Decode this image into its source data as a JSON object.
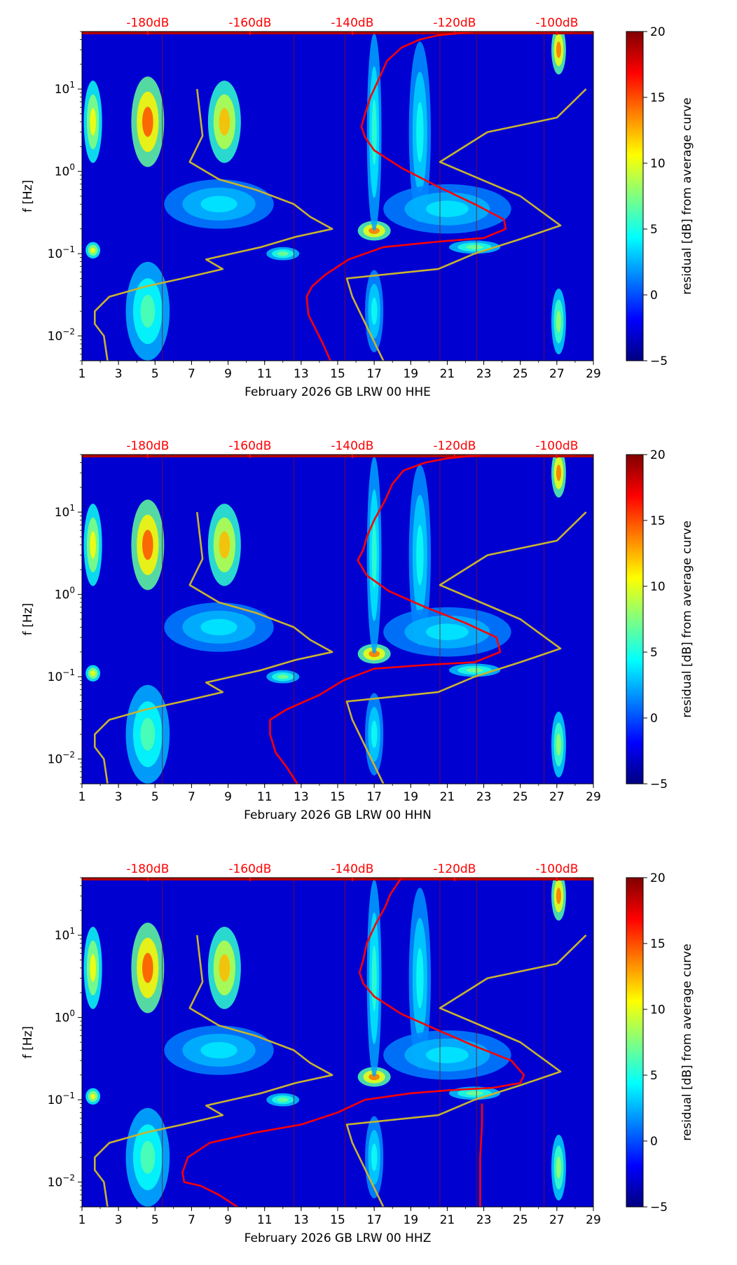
{
  "figure": {
    "panel_count": 3
  },
  "chart_data": [
    {
      "type": "heatmap",
      "channel": "HHE",
      "xlabel": "February 2026 GB LRW 00 HHE",
      "ylabel": "f [Hz]",
      "xlim": [
        1,
        29
      ],
      "xticks": [
        "1",
        "3",
        "5",
        "7",
        "9",
        "11",
        "13",
        "15",
        "17",
        "19",
        "21",
        "23",
        "25",
        "27",
        "29"
      ],
      "ylim": [
        0.005,
        50
      ],
      "yscale": "log",
      "yticks": [
        {
          "value": 0.01,
          "base": "10",
          "exp": "−2"
        },
        {
          "value": 0.1,
          "base": "10",
          "exp": "−1"
        },
        {
          "value": 1,
          "base": "10",
          "exp": "0"
        },
        {
          "value": 10,
          "base": "10",
          "exp": "1"
        }
      ],
      "top_axis_labels": [
        "-180dB",
        "-160dB",
        "-140dB",
        "-120dB",
        "-100dB"
      ],
      "top_axis_color": "#ff0000",
      "colorbar": {
        "label": "residual [dB] from average curve",
        "min": -5,
        "max": 20,
        "ticks": [
          "−5",
          "0",
          "5",
          "10",
          "15",
          "20"
        ],
        "colormap": "jet"
      },
      "curves": [
        {
          "color": "#ff0000",
          "points": [
            [
              14.6,
              0.005
            ],
            [
              14.2,
              0.008
            ],
            [
              13.8,
              0.012
            ],
            [
              13.4,
              0.018
            ],
            [
              13.3,
              0.03
            ],
            [
              13.6,
              0.04
            ],
            [
              14.3,
              0.055
            ],
            [
              15.6,
              0.085
            ],
            [
              17.5,
              0.12
            ],
            [
              20.5,
              0.14
            ],
            [
              23,
              0.155
            ],
            [
              24.2,
              0.2
            ],
            [
              24.1,
              0.26
            ],
            [
              22.5,
              0.4
            ],
            [
              20.5,
              0.65
            ],
            [
              18.5,
              1.1
            ],
            [
              17,
              1.8
            ],
            [
              16.5,
              2.6
            ],
            [
              16.3,
              3.5
            ],
            [
              16.5,
              5
            ],
            [
              16.8,
              8
            ],
            [
              17.3,
              14
            ],
            [
              17.7,
              22
            ],
            [
              18.5,
              32
            ],
            [
              19.5,
              40
            ],
            [
              20.5,
              45
            ],
            [
              22.5,
              50
            ],
            [
              28,
              50
            ]
          ]
        },
        {
          "color": "#c8b430",
          "points": [
            [
              2.4,
              0.005
            ],
            [
              2.2,
              0.01
            ],
            [
              1.7,
              0.014
            ],
            [
              1.7,
              0.02
            ],
            [
              2.5,
              0.03
            ],
            [
              4.5,
              0.04
            ],
            [
              6.5,
              0.05
            ],
            [
              8.7,
              0.065
            ],
            [
              7.8,
              0.085
            ],
            [
              9.2,
              0.1
            ],
            [
              10.8,
              0.12
            ],
            [
              12.7,
              0.16
            ],
            [
              14.7,
              0.2
            ],
            [
              13.5,
              0.28
            ],
            [
              12.6,
              0.4
            ],
            [
              10.5,
              0.6
            ],
            [
              8.5,
              0.8
            ],
            [
              6.9,
              1.3
            ],
            [
              7.6,
              2.7
            ],
            [
              7.3,
              10
            ],
            [
              17.5,
              0.005
            ],
            [
              15.8,
              0.03
            ],
            [
              15.5,
              0.05
            ],
            [
              20.5,
              0.065
            ],
            [
              22.5,
              0.1
            ],
            [
              25,
              0.15
            ],
            [
              27.2,
              0.22
            ],
            [
              25,
              0.5
            ],
            [
              20.6,
              1.3
            ],
            [
              23.2,
              3
            ],
            [
              27,
              4.5
            ],
            [
              28.6,
              10
            ]
          ]
        }
      ]
    },
    {
      "type": "heatmap",
      "channel": "HHN",
      "xlabel": "February 2026 GB LRW 00 HHN",
      "ylabel": "f [Hz]",
      "xlim": [
        1,
        29
      ],
      "xticks": [
        "1",
        "3",
        "5",
        "7",
        "9",
        "11",
        "13",
        "15",
        "17",
        "19",
        "21",
        "23",
        "25",
        "27",
        "29"
      ],
      "ylim": [
        0.005,
        50
      ],
      "yscale": "log",
      "yticks": [
        {
          "value": 0.01,
          "base": "10",
          "exp": "−2"
        },
        {
          "value": 0.1,
          "base": "10",
          "exp": "−1"
        },
        {
          "value": 1,
          "base": "10",
          "exp": "0"
        },
        {
          "value": 10,
          "base": "10",
          "exp": "1"
        }
      ],
      "top_axis_labels": [
        "-180dB",
        "-160dB",
        "-140dB",
        "-120dB",
        "-100dB"
      ],
      "top_axis_color": "#ff0000",
      "colorbar": {
        "label": "residual [dB] from average curve",
        "min": -5,
        "max": 20,
        "ticks": [
          "−5",
          "0",
          "5",
          "10",
          "15",
          "20"
        ],
        "colormap": "jet"
      },
      "curves": [
        {
          "color": "#ff0000",
          "points": [
            [
              12.8,
              0.005
            ],
            [
              12.2,
              0.008
            ],
            [
              11.6,
              0.012
            ],
            [
              11.3,
              0.02
            ],
            [
              11.3,
              0.03
            ],
            [
              12.2,
              0.04
            ],
            [
              14,
              0.06
            ],
            [
              15.3,
              0.09
            ],
            [
              17,
              0.125
            ],
            [
              20,
              0.14
            ],
            [
              22.5,
              0.15
            ],
            [
              23.9,
              0.2
            ],
            [
              23.7,
              0.3
            ],
            [
              22,
              0.45
            ],
            [
              19.8,
              0.7
            ],
            [
              17.8,
              1.1
            ],
            [
              16.6,
              1.7
            ],
            [
              16.1,
              2.6
            ],
            [
              16.4,
              3.5
            ],
            [
              16.6,
              5
            ],
            [
              17,
              8
            ],
            [
              17.6,
              14
            ],
            [
              18,
              22
            ],
            [
              18.6,
              32
            ],
            [
              19.8,
              40
            ],
            [
              21,
              45
            ],
            [
              23,
              50
            ],
            [
              28,
              50
            ]
          ]
        },
        {
          "color": "#c8b430",
          "points": [
            [
              2.4,
              0.005
            ],
            [
              2.2,
              0.01
            ],
            [
              1.7,
              0.014
            ],
            [
              1.7,
              0.02
            ],
            [
              2.5,
              0.03
            ],
            [
              4.5,
              0.04
            ],
            [
              6.5,
              0.05
            ],
            [
              8.7,
              0.065
            ],
            [
              7.8,
              0.085
            ],
            [
              9.2,
              0.1
            ],
            [
              10.8,
              0.12
            ],
            [
              12.7,
              0.16
            ],
            [
              14.7,
              0.2
            ],
            [
              13.5,
              0.28
            ],
            [
              12.6,
              0.4
            ],
            [
              10.5,
              0.6
            ],
            [
              8.5,
              0.8
            ],
            [
              6.9,
              1.3
            ],
            [
              7.6,
              2.7
            ],
            [
              7.3,
              10
            ],
            [
              17.5,
              0.005
            ],
            [
              15.8,
              0.03
            ],
            [
              15.5,
              0.05
            ],
            [
              20.5,
              0.065
            ],
            [
              22.5,
              0.1
            ],
            [
              25,
              0.15
            ],
            [
              27.2,
              0.22
            ],
            [
              25,
              0.5
            ],
            [
              20.6,
              1.3
            ],
            [
              23.2,
              3
            ],
            [
              27,
              4.5
            ],
            [
              28.6,
              10
            ]
          ]
        }
      ]
    },
    {
      "type": "heatmap",
      "channel": "HHZ",
      "xlabel": "February 2026 GB LRW 00 HHZ",
      "ylabel": "f [Hz]",
      "xlim": [
        1,
        29
      ],
      "xticks": [
        "1",
        "3",
        "5",
        "7",
        "9",
        "11",
        "13",
        "15",
        "17",
        "19",
        "21",
        "23",
        "25",
        "27",
        "29"
      ],
      "ylim": [
        0.005,
        50
      ],
      "yscale": "log",
      "yticks": [
        {
          "value": 0.01,
          "base": "10",
          "exp": "−2"
        },
        {
          "value": 0.1,
          "base": "10",
          "exp": "−1"
        },
        {
          "value": 1,
          "base": "10",
          "exp": "0"
        },
        {
          "value": 10,
          "base": "10",
          "exp": "1"
        }
      ],
      "top_axis_labels": [
        "-180dB",
        "-160dB",
        "-140dB",
        "-120dB",
        "-100dB"
      ],
      "top_axis_color": "#ff0000",
      "colorbar": {
        "label": "residual [dB] from average curve",
        "min": -5,
        "max": 20,
        "ticks": [
          "−5",
          "0",
          "5",
          "10",
          "15",
          "20"
        ],
        "colormap": "jet"
      },
      "curves": [
        {
          "color": "#ff0000",
          "points": [
            [
              9.5,
              0.005
            ],
            [
              8.5,
              0.007
            ],
            [
              7.5,
              0.009
            ],
            [
              6.6,
              0.01
            ],
            [
              6.5,
              0.013
            ],
            [
              6.8,
              0.02
            ],
            [
              8,
              0.03
            ],
            [
              10.5,
              0.04
            ],
            [
              13,
              0.05
            ],
            [
              15,
              0.07
            ],
            [
              16.5,
              0.1
            ],
            [
              19,
              0.12
            ],
            [
              21,
              0.13
            ],
            [
              23.5,
              0.14
            ],
            [
              25,
              0.16
            ],
            [
              25.2,
              0.2
            ],
            [
              24.5,
              0.3
            ],
            [
              22.5,
              0.45
            ],
            [
              20.5,
              0.7
            ],
            [
              18.5,
              1.1
            ],
            [
              17,
              1.8
            ],
            [
              16.4,
              2.6
            ],
            [
              16.2,
              3.5
            ],
            [
              16.4,
              5
            ],
            [
              16.6,
              8
            ],
            [
              17.1,
              14
            ],
            [
              17.6,
              22
            ],
            [
              17.9,
              32
            ],
            [
              18.2,
              40
            ],
            [
              18.5,
              50
            ],
            [
              28,
              50
            ]
          ]
        },
        {
          "color": "#ff0000",
          "points": [
            [
              22.8,
              0.005
            ],
            [
              22.8,
              0.02
            ],
            [
              22.9,
              0.05
            ],
            [
              22.9,
              0.09
            ]
          ]
        },
        {
          "color": "#c8b430",
          "points": [
            [
              2.4,
              0.005
            ],
            [
              2.2,
              0.01
            ],
            [
              1.7,
              0.014
            ],
            [
              1.7,
              0.02
            ],
            [
              2.5,
              0.03
            ],
            [
              4.5,
              0.04
            ],
            [
              6.5,
              0.05
            ],
            [
              8.7,
              0.065
            ],
            [
              7.8,
              0.085
            ],
            [
              9.2,
              0.1
            ],
            [
              10.8,
              0.12
            ],
            [
              12.7,
              0.16
            ],
            [
              14.7,
              0.2
            ],
            [
              13.5,
              0.28
            ],
            [
              12.6,
              0.4
            ],
            [
              10.5,
              0.6
            ],
            [
              8.5,
              0.8
            ],
            [
              6.9,
              1.3
            ],
            [
              7.6,
              2.7
            ],
            [
              7.3,
              10
            ],
            [
              17.5,
              0.005
            ],
            [
              15.8,
              0.03
            ],
            [
              15.5,
              0.05
            ],
            [
              20.5,
              0.065
            ],
            [
              22.5,
              0.1
            ],
            [
              25,
              0.15
            ],
            [
              27.2,
              0.22
            ],
            [
              25,
              0.5
            ],
            [
              20.6,
              1.3
            ],
            [
              23.2,
              3
            ],
            [
              27,
              4.5
            ],
            [
              28.6,
              10
            ]
          ]
        }
      ]
    }
  ]
}
